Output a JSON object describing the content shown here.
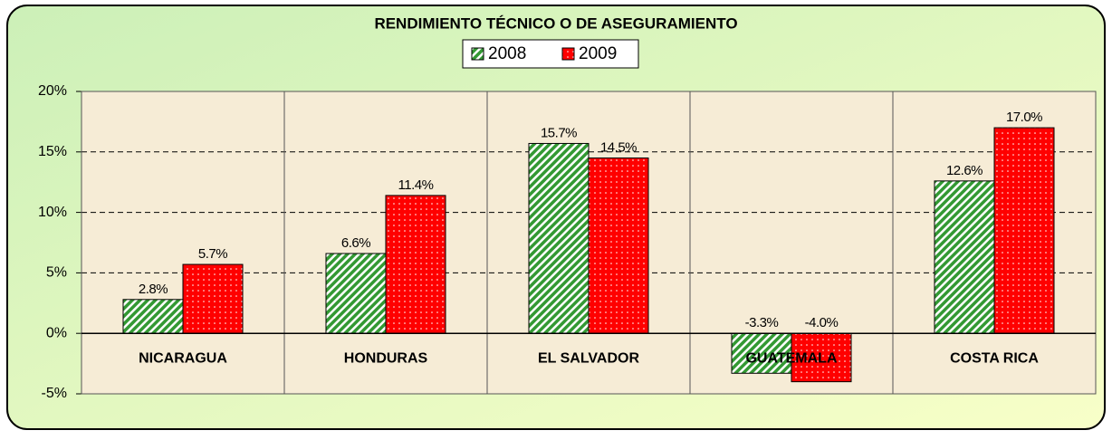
{
  "chart_data": {
    "type": "bar",
    "title": "RENDIMIENTO TÉCNICO O DE ASEGURAMIENTO",
    "categories": [
      "NICARAGUA",
      "HONDURAS",
      "EL SALVADOR",
      "GUATEMALA",
      "COSTA RICA"
    ],
    "series": [
      {
        "name": "2008",
        "color": "#339933",
        "values": [
          2.8,
          6.6,
          15.7,
          -3.3,
          12.6
        ],
        "value_labels": [
          "2.8%",
          "6.6%",
          "15.7%",
          "-3.3%",
          "12.6%"
        ]
      },
      {
        "name": "2009",
        "color": "#ff0000",
        "values": [
          5.7,
          11.4,
          14.5,
          -4.0,
          17.0
        ],
        "value_labels": [
          "5.7%",
          "11.4%",
          "14.5%",
          "-4.0%",
          "17.0%"
        ]
      }
    ],
    "ylim": [
      -5,
      20
    ],
    "yticks": [
      {
        "value": -5,
        "label": "-5%"
      },
      {
        "value": 0,
        "label": "0%"
      },
      {
        "value": 5,
        "label": "5%"
      },
      {
        "value": 10,
        "label": "10%"
      },
      {
        "value": 15,
        "label": "15%"
      },
      {
        "value": 20,
        "label": "20%"
      }
    ],
    "grid": true
  }
}
